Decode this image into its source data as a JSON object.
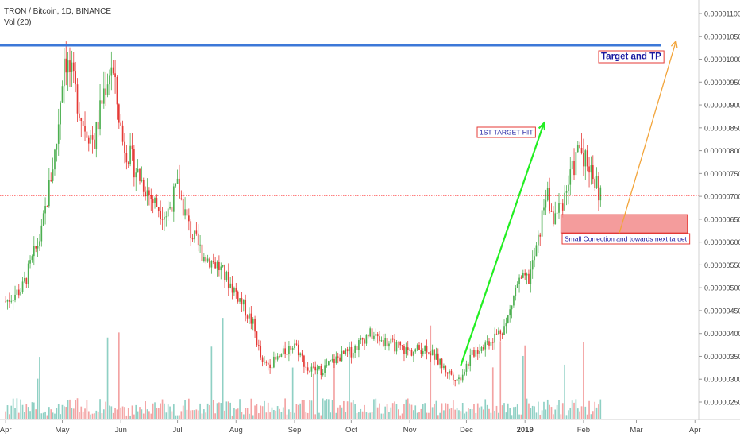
{
  "header": {
    "symbol_line": "TRON / Bitcoin, 1D, BINANCE",
    "volume_line": "Vol (20)"
  },
  "chart_data": {
    "type": "candlestick",
    "xlabel": "",
    "ylabel": "",
    "x_ticks": [
      "Apr",
      "May",
      "Jun",
      "Jul",
      "Aug",
      "Sep",
      "Oct",
      "Nov",
      "Dec",
      "2019",
      "Feb",
      "Mar",
      "Apr"
    ],
    "y_ticks": [
      "0.00001100",
      "0.00001050",
      "0.00001000",
      "0.00000950",
      "0.00000900",
      "0.00000850",
      "0.00000800",
      "0.00000750",
      "0.00000700",
      "0.00000650",
      "0.00000600",
      "0.00000550",
      "0.00000500",
      "0.00000450",
      "0.00000400",
      "0.00000350",
      "0.00000300",
      "0.00000250"
    ],
    "ylim": [
      2.3e-06,
      1.11e-05
    ],
    "price_key_points": [
      {
        "date": "2018-04-01",
        "close": 4.7e-06
      },
      {
        "date": "2018-04-10",
        "close": 5e-06
      },
      {
        "date": "2018-04-20",
        "close": 6.2e-06
      },
      {
        "date": "2018-04-28",
        "close": 8.2e-06
      },
      {
        "date": "2018-05-02",
        "close": 1.01e-05
      },
      {
        "date": "2018-05-06",
        "close": 9.6e-06
      },
      {
        "date": "2018-05-12",
        "close": 8.6e-06
      },
      {
        "date": "2018-05-18",
        "close": 8.2e-06
      },
      {
        "date": "2018-05-23",
        "close": 9.3e-06
      },
      {
        "date": "2018-05-27",
        "close": 9.9e-06
      },
      {
        "date": "2018-06-02",
        "close": 8.2e-06
      },
      {
        "date": "2018-06-10",
        "close": 7.5e-06
      },
      {
        "date": "2018-06-18",
        "close": 6.9e-06
      },
      {
        "date": "2018-06-25",
        "close": 6.6e-06
      },
      {
        "date": "2018-07-01",
        "close": 7.2e-06
      },
      {
        "date": "2018-07-08",
        "close": 6.2e-06
      },
      {
        "date": "2018-07-15",
        "close": 5.7e-06
      },
      {
        "date": "2018-07-22",
        "close": 5.5e-06
      },
      {
        "date": "2018-08-01",
        "close": 4.9e-06
      },
      {
        "date": "2018-08-10",
        "close": 4.2e-06
      },
      {
        "date": "2018-08-15",
        "close": 3.3e-06
      },
      {
        "date": "2018-08-22",
        "close": 3.4e-06
      },
      {
        "date": "2018-09-01",
        "close": 3.8e-06
      },
      {
        "date": "2018-09-08",
        "close": 3.2e-06
      },
      {
        "date": "2018-09-15",
        "close": 3.2e-06
      },
      {
        "date": "2018-09-25",
        "close": 3.5e-06
      },
      {
        "date": "2018-10-01",
        "close": 3.6e-06
      },
      {
        "date": "2018-10-10",
        "close": 4e-06
      },
      {
        "date": "2018-10-20",
        "close": 3.8e-06
      },
      {
        "date": "2018-11-01",
        "close": 3.6e-06
      },
      {
        "date": "2018-11-10",
        "close": 3.7e-06
      },
      {
        "date": "2018-11-20",
        "close": 3.2e-06
      },
      {
        "date": "2018-11-27",
        "close": 3e-06
      },
      {
        "date": "2018-12-05",
        "close": 3.6e-06
      },
      {
        "date": "2018-12-15",
        "close": 3.9e-06
      },
      {
        "date": "2018-12-22",
        "close": 4.2e-06
      },
      {
        "date": "2018-12-28",
        "close": 5.1e-06
      },
      {
        "date": "2019-01-03",
        "close": 5.2e-06
      },
      {
        "date": "2019-01-08",
        "close": 6e-06
      },
      {
        "date": "2019-01-12",
        "close": 7.1e-06
      },
      {
        "date": "2019-01-16",
        "close": 6.5e-06
      },
      {
        "date": "2019-01-20",
        "close": 6.8e-06
      },
      {
        "date": "2019-01-25",
        "close": 7.4e-06
      },
      {
        "date": "2019-01-30",
        "close": 8.1e-06
      },
      {
        "date": "2019-02-05",
        "close": 7.6e-06
      },
      {
        "date": "2019-02-10",
        "close": 7e-06
      }
    ],
    "current_price": {
      "value": 7.02e-06,
      "label": "0.00000702",
      "color": "#ff0000"
    },
    "resistance_line": {
      "value": 1.03e-05,
      "color": "#3c78d8"
    },
    "support_zone": {
      "from": 6.2e-06,
      "to": 6.6e-06,
      "start": "2019-01-20",
      "end": "2019-03-28",
      "color": "#f28b8b"
    },
    "annotations": [
      {
        "text": "Target and TP",
        "color": "#1a1aa0",
        "border": "#e53935"
      },
      {
        "text": "1ST TARGET HIT",
        "color": "#1a1aa0",
        "border": "#e53935"
      },
      {
        "text": "Small Correction and towards next target",
        "color": "#1a1aa0",
        "border": "#e53935"
      }
    ],
    "arrows": [
      {
        "from": {
          "date": "2018-11-28",
          "value": 3.3e-06
        },
        "to": {
          "date": "2019-01-11",
          "value": 8.6e-06
        },
        "color": "#22ee22"
      },
      {
        "from": {
          "date": "2019-02-20",
          "value": 6.2e-06
        },
        "to": {
          "date": "2019-03-22",
          "value": 1.04e-05
        },
        "color": "#f2a43a"
      }
    ],
    "colors": {
      "up": "#4caf50",
      "down": "#e53935",
      "vol_up": "#8fd0c4",
      "vol_down": "#f3a3a3"
    },
    "grid": false,
    "legend": "none"
  }
}
